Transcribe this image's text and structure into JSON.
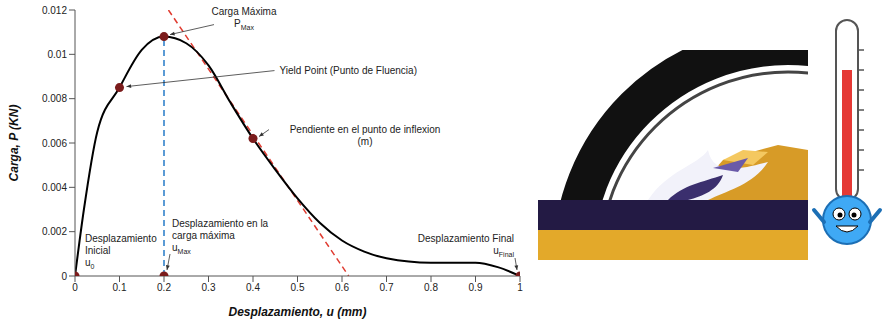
{
  "chart_data": {
    "type": "line",
    "x_label": "Desplazamiento, u   (mm)",
    "y_label": "Carga, P    (KN)",
    "xlim": [
      0,
      1
    ],
    "ylim": [
      0,
      0.012
    ],
    "xticks": [
      0,
      0.1,
      0.2,
      0.3,
      0.4,
      0.5,
      0.6,
      0.7,
      0.8,
      0.9,
      1
    ],
    "yticks": [
      0,
      0.002,
      0.004,
      0.006,
      0.008,
      0.01,
      0.012
    ],
    "grid": false,
    "color": "#000000",
    "x": [
      0,
      0.02,
      0.05,
      0.1,
      0.15,
      0.2,
      0.25,
      0.3,
      0.35,
      0.4,
      0.45,
      0.5,
      0.55,
      0.6,
      0.65,
      0.7,
      0.8,
      0.9,
      0.95,
      1
    ],
    "values": [
      0,
      0.003,
      0.0065,
      0.0085,
      0.0102,
      0.0108,
      0.0105,
      0.0095,
      0.0078,
      0.0062,
      0.0048,
      0.0035,
      0.0024,
      0.0016,
      0.0011,
      0.0008,
      0.0006,
      0.0006,
      0.0004,
      0
    ],
    "tangent": {
      "x": [
        0.21,
        0.615
      ],
      "values": [
        0.012,
        0
      ],
      "color": "#e03c31",
      "line_style": "dashed"
    },
    "max_line": {
      "x": [
        0.2,
        0.2
      ],
      "values": [
        0,
        0.0108
      ],
      "color": "#5b9bd5",
      "line_style": "dashed"
    },
    "annotations": [
      {
        "x": 0.2,
        "y": 0.0108,
        "text": "Carga Máxima",
        "symbol": "P",
        "subscript": "Max"
      },
      {
        "x": 0.1,
        "y": 0.0085,
        "text": "Yield Point (Punto de Fluencia)"
      },
      {
        "x": 0.4,
        "y": 0.0062,
        "text": "Pendiente en el punto de inflexion",
        "symbol": "(m)"
      },
      {
        "x": 0,
        "y": 0,
        "text": "Desplazamiento Inicial",
        "symbol": "u",
        "subscript": "0"
      },
      {
        "x": 0.2,
        "y": 0,
        "text": "Desplazamiento en la carga máxima",
        "symbol": "u",
        "subscript": "Max"
      },
      {
        "x": 1,
        "y": 0,
        "text": "Desplazamiento Final",
        "symbol": "u",
        "subscript": "Final"
      }
    ]
  }
}
